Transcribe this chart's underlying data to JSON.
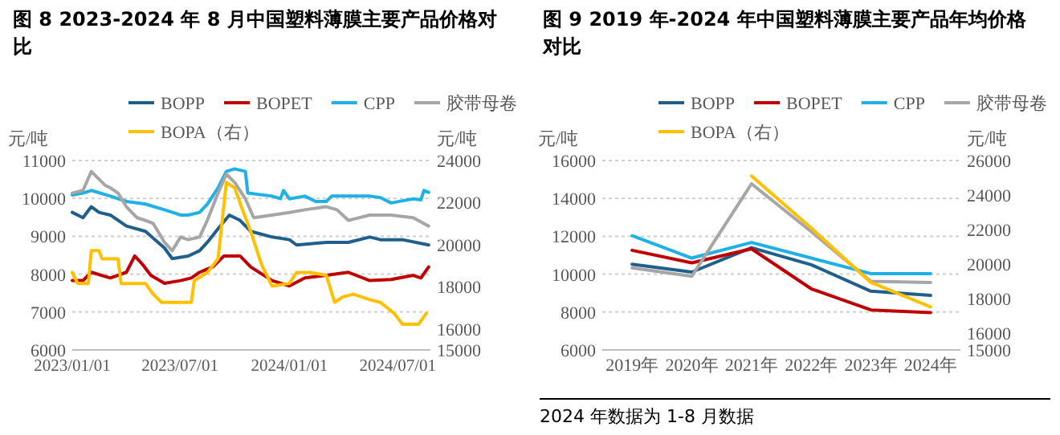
{
  "chart_data": [
    {
      "type": "line",
      "title": "图 8 2023-2024 年 8 月中国塑料薄膜主要产品价格对比",
      "ylabel": "元/吨",
      "y2label": "元/吨",
      "grid": "y",
      "legend": "top",
      "xlim": [
        "2023-01-01",
        "2024-08-25"
      ],
      "xticks": [
        {
          "value": "2023-01-01",
          "label": "2023/01/01"
        },
        {
          "value": "2023-07-01",
          "label": "2023/07/01"
        },
        {
          "value": "2024-01-01",
          "label": "2024/01/01"
        },
        {
          "value": "2024-07-01",
          "label": "2024/07/01"
        }
      ],
      "ylim": [
        6000,
        11000
      ],
      "yticks": [
        6000,
        7000,
        8000,
        9000,
        10000,
        11000
      ],
      "y2lim": [
        15000,
        24000
      ],
      "y2ticks": [
        15000,
        16000,
        18000,
        20000,
        22000,
        24000
      ],
      "series": [
        {
          "name": "BOPP",
          "color": "#1f5f8b",
          "x": [
            "2023-01-01",
            "2023-01-19",
            "2023-02-02",
            "2023-02-15",
            "2023-03-06",
            "2023-04-02",
            "2023-05-04",
            "2023-06-05",
            "2023-06-18",
            "2023-07-15",
            "2023-08-03",
            "2023-08-16",
            "2023-09-03",
            "2023-09-22",
            "2023-10-10",
            "2023-10-28",
            "2023-12-03",
            "2024-01-01",
            "2024-01-13",
            "2024-03-03",
            "2024-04-09",
            "2024-05-15",
            "2024-06-02",
            "2024-07-09",
            "2024-08-22"
          ],
          "values": [
            9630,
            9490,
            9780,
            9630,
            9560,
            9270,
            9130,
            8690,
            8410,
            8480,
            8620,
            8840,
            9200,
            9560,
            9420,
            9130,
            8980,
            8910,
            8770,
            8840,
            8840,
            8980,
            8910,
            8910,
            8770
          ]
        },
        {
          "name": "BOPET",
          "color": "#c00000",
          "x": [
            "2023-01-01",
            "2023-01-19",
            "2023-02-02",
            "2023-03-06",
            "2023-04-02",
            "2023-04-16",
            "2023-04-29",
            "2023-05-13",
            "2023-06-05",
            "2023-07-02",
            "2023-07-20",
            "2023-08-03",
            "2023-08-25",
            "2023-09-13",
            "2023-10-10",
            "2023-10-28",
            "2023-12-03",
            "2024-01-01",
            "2024-01-27",
            "2024-03-03",
            "2024-04-09",
            "2024-05-15",
            "2024-06-20",
            "2024-07-27",
            "2024-08-09",
            "2024-08-22"
          ],
          "values": [
            7830,
            7830,
            8050,
            7900,
            8050,
            8480,
            8260,
            7970,
            7760,
            7830,
            7900,
            8050,
            8190,
            8480,
            8480,
            8190,
            7830,
            7690,
            7900,
            7970,
            8050,
            7830,
            7860,
            7970,
            7900,
            8190
          ]
        },
        {
          "name": "CPP",
          "color": "#1fb0e6",
          "x": [
            "2023-01-01",
            "2023-01-19",
            "2023-02-02",
            "2023-03-06",
            "2023-04-02",
            "2023-05-04",
            "2023-06-05",
            "2023-07-02",
            "2023-07-15",
            "2023-08-03",
            "2023-08-16",
            "2023-09-03",
            "2023-09-17",
            "2023-10-01",
            "2023-10-19",
            "2023-10-23",
            "2023-12-03",
            "2023-12-17",
            "2023-12-22",
            "2024-01-01",
            "2024-01-27",
            "2024-02-14",
            "2024-03-03",
            "2024-03-12",
            "2024-04-09",
            "2024-05-15",
            "2024-06-02",
            "2024-06-20",
            "2024-07-27",
            "2024-08-09",
            "2024-08-14",
            "2024-08-22"
          ],
          "values": [
            10090,
            10140,
            10210,
            10060,
            9920,
            9850,
            9700,
            9560,
            9560,
            9630,
            9850,
            10280,
            10710,
            10780,
            10710,
            10140,
            10060,
            9990,
            10210,
            9990,
            10060,
            9920,
            9920,
            10060,
            10060,
            10060,
            10020,
            9880,
            9990,
            9960,
            10210,
            10160
          ]
        },
        {
          "name": "胶带母卷",
          "color": "#a6a6a6",
          "x": [
            "2023-01-01",
            "2023-01-19",
            "2023-02-02",
            "2023-02-11",
            "2023-02-25",
            "2023-03-06",
            "2023-03-19",
            "2023-04-02",
            "2023-04-20",
            "2023-05-04",
            "2023-05-17",
            "2023-06-05",
            "2023-06-18",
            "2023-07-02",
            "2023-07-15",
            "2023-08-03",
            "2023-08-16",
            "2023-09-03",
            "2023-09-17",
            "2023-10-01",
            "2023-10-19",
            "2023-11-02",
            "2023-12-03",
            "2024-01-01",
            "2024-01-27",
            "2024-03-03",
            "2024-03-21",
            "2024-04-09",
            "2024-05-15",
            "2024-06-20",
            "2024-07-27",
            "2024-08-22"
          ],
          "values": [
            10140,
            10210,
            10710,
            10570,
            10350,
            10280,
            10140,
            9780,
            9490,
            9420,
            9340,
            8840,
            8620,
            8980,
            8910,
            8980,
            9420,
            10140,
            10640,
            10420,
            9990,
            9490,
            9560,
            9630,
            9700,
            9780,
            9700,
            9420,
            9560,
            9560,
            9490,
            9270
          ]
        },
        {
          "name": "BOPA（右）",
          "color": "#ffc000",
          "axis": "y2",
          "x": [
            "2023-01-01",
            "2023-01-10",
            "2023-01-28",
            "2023-02-02",
            "2023-02-15",
            "2023-02-20",
            "2023-03-19",
            "2023-03-24",
            "2023-05-04",
            "2023-05-17",
            "2023-05-31",
            "2023-07-20",
            "2023-07-25",
            "2023-08-16",
            "2023-09-03",
            "2023-09-17",
            "2023-10-01",
            "2023-10-14",
            "2023-10-28",
            "2023-11-15",
            "2023-12-03",
            "2024-01-01",
            "2024-01-13",
            "2024-02-05",
            "2024-03-03",
            "2024-03-17",
            "2024-03-31",
            "2024-04-18",
            "2024-05-15",
            "2024-06-02",
            "2024-06-25",
            "2024-07-09",
            "2024-08-05",
            "2024-08-18"
          ],
          "values": [
            18680,
            18160,
            18160,
            19720,
            19720,
            19330,
            19330,
            18160,
            18160,
            17650,
            17260,
            17260,
            18290,
            18680,
            19330,
            22960,
            22700,
            21670,
            20630,
            19070,
            18030,
            18160,
            18680,
            18680,
            18550,
            17260,
            17520,
            17650,
            17390,
            17260,
            16740,
            16220,
            16220,
            16740
          ]
        }
      ]
    },
    {
      "type": "line",
      "title": "图 9 2019 年-2024 年中国塑料薄膜主要产品年均价格对比",
      "ylabel": "元/吨",
      "y2label": "元/吨",
      "grid": "y",
      "legend": "top",
      "categories": [
        "2019年",
        "2020年",
        "2021年",
        "2022年",
        "2023年",
        "2024年"
      ],
      "ylim": [
        6000,
        16000
      ],
      "yticks": [
        6000,
        8000,
        10000,
        12000,
        14000,
        16000
      ],
      "y2lim": [
        15000,
        26000
      ],
      "y2ticks": [
        15000,
        16000,
        18000,
        20000,
        22000,
        24000,
        26000
      ],
      "annotations": [
        "2024 年数据为 1-8 月数据"
      ],
      "series": [
        {
          "name": "BOPP",
          "color": "#1f5f8b",
          "values": [
            10520,
            10110,
            11400,
            10500,
            9100,
            8880
          ]
        },
        {
          "name": "BOPET",
          "color": "#c00000",
          "values": [
            11260,
            10600,
            11340,
            9230,
            8110,
            7970
          ]
        },
        {
          "name": "CPP",
          "color": "#1fb0e6",
          "values": [
            12030,
            10850,
            11670,
            10850,
            10030,
            10030
          ]
        },
        {
          "name": "胶带母卷",
          "color": "#a6a6a6",
          "values": [
            10330,
            9890,
            14770,
            12250,
            9620,
            9560
          ]
        },
        {
          "name": "BOPA（右）",
          "color": "#ffc000",
          "axis": "y2",
          "values": [
            null,
            null,
            25100,
            22080,
            18920,
            17500
          ]
        }
      ]
    }
  ]
}
